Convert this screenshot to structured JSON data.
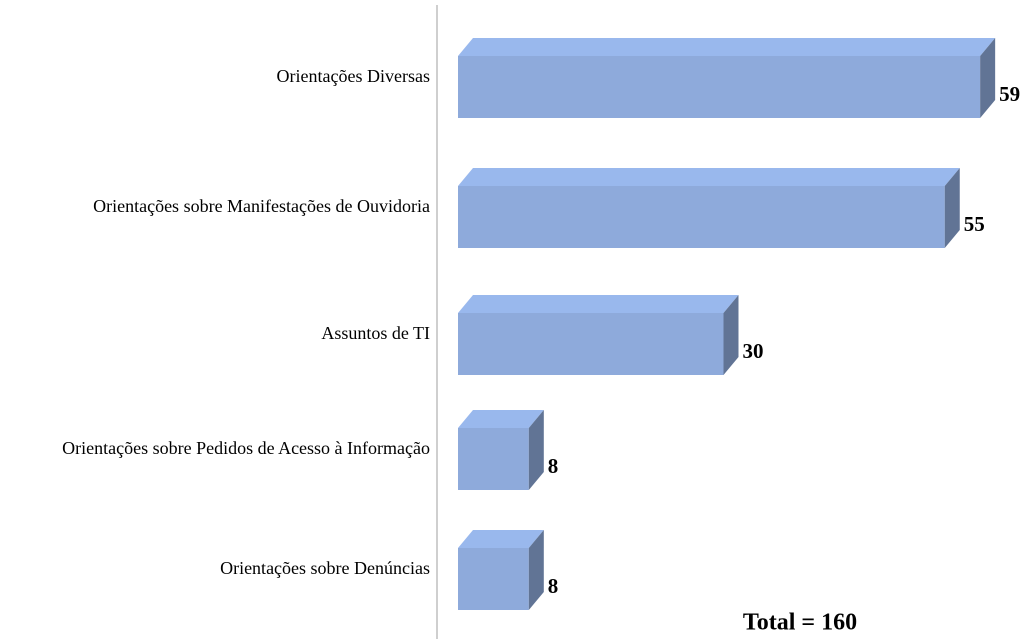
{
  "chart_data": {
    "type": "bar3d_horizontal",
    "categories": [
      "Orientações Diversas",
      "Orientações sobre Manifestações de Ouvidoria",
      "Assuntos de TI",
      "Orientações sobre Pedidos de Acesso à Informação",
      "Orientações sobre Denúncias"
    ],
    "values": [
      59,
      55,
      30,
      8,
      8
    ],
    "color": "#8eaadb",
    "annotation": "Total = 160"
  }
}
